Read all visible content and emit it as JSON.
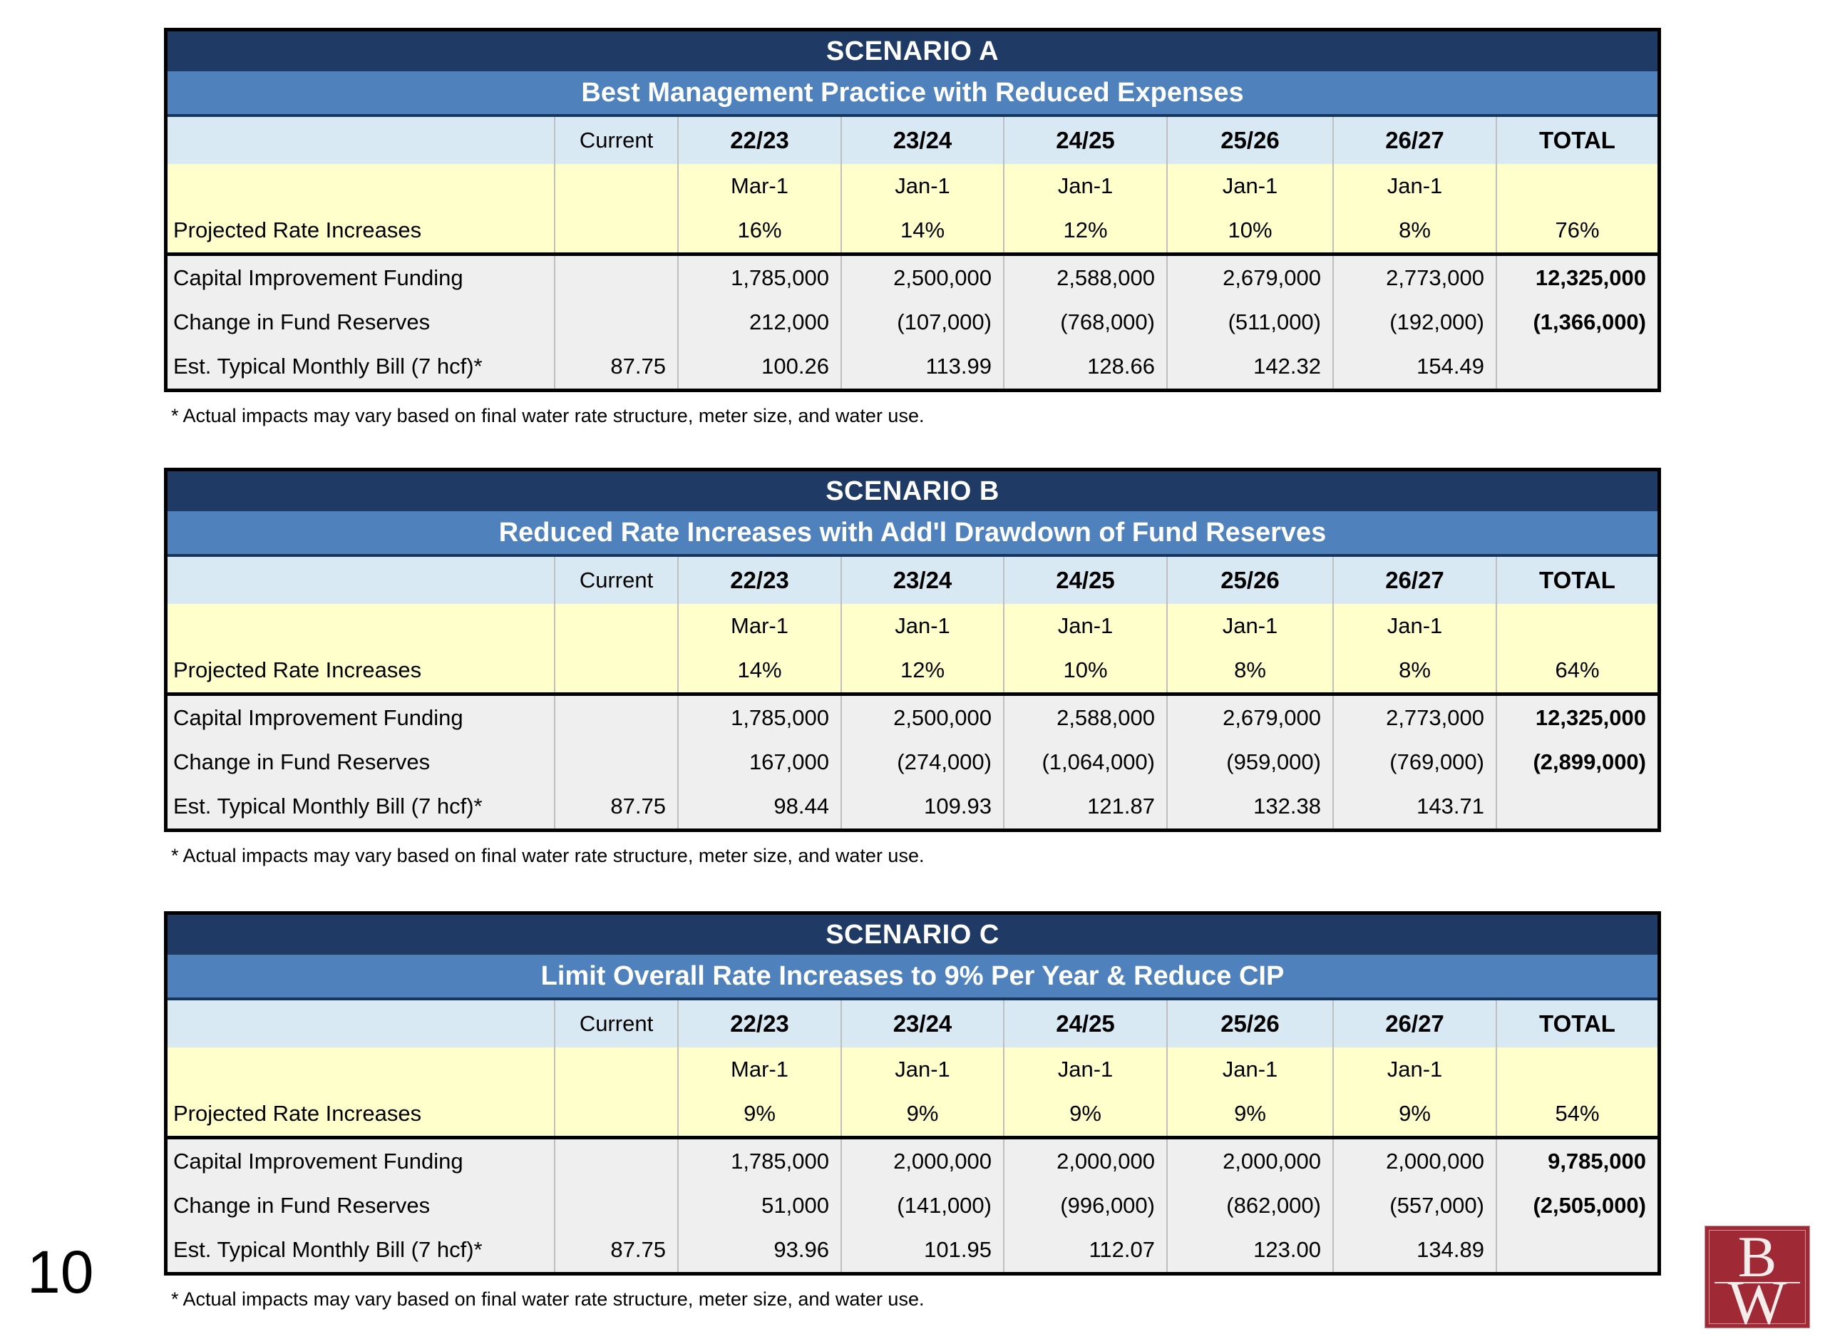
{
  "page": {
    "number": "10"
  },
  "footnote": "* Actual impacts may vary based on final water rate structure, meter size, and water use.",
  "columns": [
    "Current",
    "22/23",
    "23/24",
    "24/25",
    "25/26",
    "26/27",
    "TOTAL"
  ],
  "row_labels": {
    "rate": "Projected Rate Increases",
    "capital": "Capital Improvement Funding",
    "reserves": "Change in Fund Reserves",
    "bill": "Est. Typical Monthly Bill (7 hcf)*"
  },
  "scenarios": [
    {
      "title": "SCENARIO A",
      "subtitle": "Best Management Practice with Reduced Expenses",
      "dates": [
        "",
        "Mar-1",
        "Jan-1",
        "Jan-1",
        "Jan-1",
        "Jan-1",
        ""
      ],
      "rates": [
        "",
        "16%",
        "14%",
        "12%",
        "10%",
        "8%",
        "76%"
      ],
      "capital_improvement_funding": [
        "",
        "1,785,000",
        "2,500,000",
        "2,588,000",
        "2,679,000",
        "2,773,000",
        "12,325,000"
      ],
      "change_in_fund_reserves": [
        "",
        "212,000",
        "(107,000)",
        "(768,000)",
        "(511,000)",
        "(192,000)",
        "(1,366,000)"
      ],
      "monthly_bill": [
        "87.75",
        "100.26",
        "113.99",
        "128.66",
        "142.32",
        "154.49",
        ""
      ]
    },
    {
      "title": "SCENARIO B",
      "subtitle": "Reduced Rate Increases with Add'l Drawdown of Fund Reserves",
      "dates": [
        "",
        "Mar-1",
        "Jan-1",
        "Jan-1",
        "Jan-1",
        "Jan-1",
        ""
      ],
      "rates": [
        "",
        "14%",
        "12%",
        "10%",
        "8%",
        "8%",
        "64%"
      ],
      "capital_improvement_funding": [
        "",
        "1,785,000",
        "2,500,000",
        "2,588,000",
        "2,679,000",
        "2,773,000",
        "12,325,000"
      ],
      "change_in_fund_reserves": [
        "",
        "167,000",
        "(274,000)",
        "(1,064,000)",
        "(959,000)",
        "(769,000)",
        "(2,899,000)"
      ],
      "monthly_bill": [
        "87.75",
        "98.44",
        "109.93",
        "121.87",
        "132.38",
        "143.71",
        ""
      ]
    },
    {
      "title": "SCENARIO C",
      "subtitle": "Limit Overall Rate Increases to 9% Per Year & Reduce CIP",
      "dates": [
        "",
        "Mar-1",
        "Jan-1",
        "Jan-1",
        "Jan-1",
        "Jan-1",
        ""
      ],
      "rates": [
        "",
        "9%",
        "9%",
        "9%",
        "9%",
        "9%",
        "54%"
      ],
      "capital_improvement_funding": [
        "",
        "1,785,000",
        "2,000,000",
        "2,000,000",
        "2,000,000",
        "2,000,000",
        "9,785,000"
      ],
      "change_in_fund_reserves": [
        "",
        "51,000",
        "(141,000)",
        "(996,000)",
        "(862,000)",
        "(557,000)",
        "(2,505,000)"
      ],
      "monthly_bill": [
        "87.75",
        "93.96",
        "101.95",
        "112.07",
        "123.00",
        "134.89",
        ""
      ]
    }
  ],
  "logo": {
    "top_letter": "B",
    "bottom_letter": "W",
    "color": "#9F2935"
  },
  "colors": {
    "title_bar_navy": "#1F3A64",
    "subtitle_bar_blue": "#4F81BD",
    "header_row_light_blue": "#D9E9F3",
    "rate_row_yellow": "#FFFFCC",
    "data_row_gray": "#EFEFEF",
    "grid_line_gray": "#BFBFBF",
    "border_black": "#000000"
  }
}
